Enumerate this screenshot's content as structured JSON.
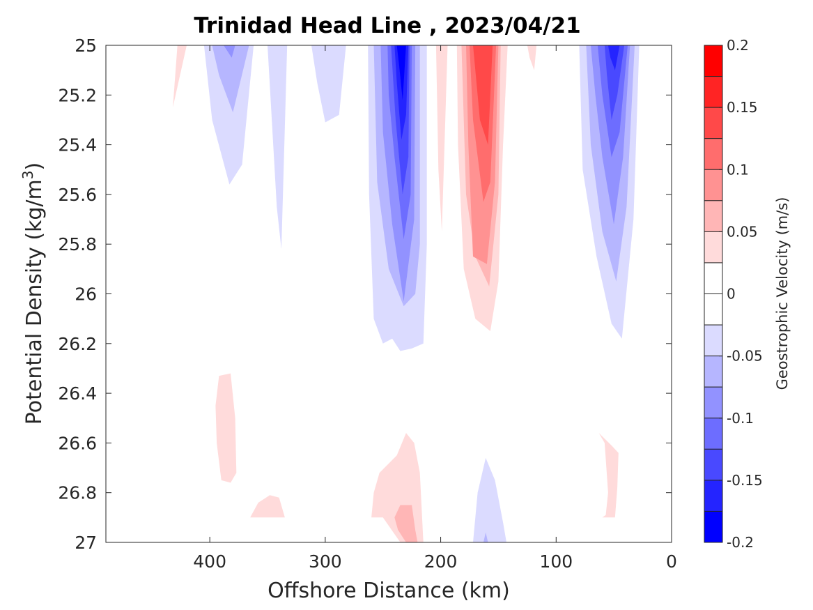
{
  "chart_data": {
    "type": "contour",
    "title": "Trinidad Head Line , 2023/04/21",
    "xlabel": "Offshore Distance (km)",
    "ylabel_main": "Potential Density (kg/m",
    "ylabel_sup": "3",
    "ylabel_end": ")",
    "xlim": [
      490,
      0
    ],
    "ylim": [
      25,
      27
    ],
    "x_ticks": [
      400,
      300,
      200,
      100,
      0
    ],
    "x_tick_labels": [
      "400",
      "300",
      "200",
      "100",
      "0"
    ],
    "y_ticks": [
      25,
      25.2,
      25.4,
      25.6,
      25.8,
      26,
      26.2,
      26.4,
      26.6,
      26.8,
      27
    ],
    "y_tick_labels": [
      "25",
      "25.2",
      "25.4",
      "25.6",
      "25.8",
      "26",
      "26.2",
      "26.4",
      "26.6",
      "26.8",
      "27"
    ],
    "y_reversed": true,
    "colorbar": {
      "label": "Geostrophic Velocity (m/s)",
      "range": [
        -0.2,
        0.2
      ],
      "tick_values": [
        0.2,
        0.15,
        0.1,
        0.05,
        0,
        -0.05,
        -0.1,
        -0.15,
        -0.2
      ],
      "tick_labels": [
        "0.2",
        "0.15",
        "0.1",
        "0.05",
        "0",
        "-0.05",
        "-0.1",
        "-0.15",
        "-0.2"
      ],
      "levels": [
        {
          "from": 0.175,
          "to": 0.2,
          "color": "#ff0000"
        },
        {
          "from": 0.15,
          "to": 0.175,
          "color": "#ff2424"
        },
        {
          "from": 0.125,
          "to": 0.15,
          "color": "#ff4949"
        },
        {
          "from": 0.1,
          "to": 0.125,
          "color": "#ff6d6d"
        },
        {
          "from": 0.075,
          "to": 0.1,
          "color": "#ff9292"
        },
        {
          "from": 0.05,
          "to": 0.075,
          "color": "#ffb6b6"
        },
        {
          "from": 0.025,
          "to": 0.05,
          "color": "#ffdbdb"
        },
        {
          "from": 0,
          "to": 0.025,
          "color": "#ffffff"
        },
        {
          "from": -0.025,
          "to": 0,
          "color": "#ffffff"
        },
        {
          "from": -0.05,
          "to": -0.025,
          "color": "#dbdbff"
        },
        {
          "from": -0.075,
          "to": -0.05,
          "color": "#b6b6ff"
        },
        {
          "from": -0.1,
          "to": -0.075,
          "color": "#9292ff"
        },
        {
          "from": -0.125,
          "to": -0.1,
          "color": "#6d6dff"
        },
        {
          "from": -0.15,
          "to": -0.125,
          "color": "#4949ff"
        },
        {
          "from": -0.175,
          "to": -0.15,
          "color": "#2424ff"
        },
        {
          "from": -0.2,
          "to": -0.175,
          "color": "#0000ff"
        }
      ]
    },
    "regions": [
      {
        "name": "pos-a",
        "level": 0.025,
        "points": [
          [
            428,
            25
          ],
          [
            420,
            25
          ],
          [
            432,
            25.25
          ]
        ]
      },
      {
        "name": "neg-a1",
        "level": -0.025,
        "points": [
          [
            405,
            25
          ],
          [
            362,
            25
          ],
          [
            372,
            25.48
          ],
          [
            383,
            25.56
          ],
          [
            398,
            25.3
          ]
        ]
      },
      {
        "name": "neg-a2",
        "level": -0.05,
        "points": [
          [
            398,
            25
          ],
          [
            366,
            25
          ],
          [
            380,
            25.27
          ],
          [
            392,
            25.12
          ]
        ]
      },
      {
        "name": "neg-a3",
        "level": -0.075,
        "points": [
          [
            388,
            25
          ],
          [
            378,
            25
          ],
          [
            381,
            25.05
          ]
        ]
      },
      {
        "name": "neg-b",
        "level": -0.025,
        "points": [
          [
            350,
            25
          ],
          [
            333,
            25
          ],
          [
            338,
            25.82
          ],
          [
            342,
            25.65
          ]
        ]
      },
      {
        "name": "neg-c",
        "level": -0.025,
        "points": [
          [
            312,
            25
          ],
          [
            282,
            25
          ],
          [
            288,
            25.28
          ],
          [
            300,
            25.31
          ],
          [
            307,
            25.15
          ]
        ]
      },
      {
        "name": "neg-d1",
        "level": -0.025,
        "points": [
          [
            263,
            25
          ],
          [
            212,
            25
          ],
          [
            212,
            25.8
          ],
          [
            215,
            26.2
          ],
          [
            225,
            26.22
          ],
          [
            235,
            26.23
          ],
          [
            242,
            26.18
          ],
          [
            250,
            26.2
          ],
          [
            258,
            26.1
          ],
          [
            262,
            25.6
          ]
        ]
      },
      {
        "name": "neg-d2",
        "level": -0.05,
        "points": [
          [
            258,
            25
          ],
          [
            218,
            25
          ],
          [
            218,
            25.8
          ],
          [
            222,
            26.0
          ],
          [
            232,
            26.05
          ],
          [
            245,
            25.9
          ],
          [
            255,
            25.55
          ]
        ]
      },
      {
        "name": "neg-d3",
        "level": -0.075,
        "points": [
          [
            252,
            25
          ],
          [
            222,
            25
          ],
          [
            223,
            25.7
          ],
          [
            232,
            26.03
          ],
          [
            242,
            25.72
          ],
          [
            250,
            25.35
          ]
        ]
      },
      {
        "name": "neg-d4",
        "level": -0.1,
        "points": [
          [
            246,
            25
          ],
          [
            225,
            25
          ],
          [
            226,
            25.6
          ],
          [
            232,
            25.78
          ],
          [
            240,
            25.45
          ],
          [
            245,
            25.2
          ]
        ]
      },
      {
        "name": "neg-d5",
        "level": -0.125,
        "points": [
          [
            243,
            25
          ],
          [
            227,
            25
          ],
          [
            228,
            25.45
          ],
          [
            233,
            25.6
          ],
          [
            239,
            25.3
          ]
        ]
      },
      {
        "name": "neg-d6",
        "level": -0.15,
        "points": [
          [
            240,
            25
          ],
          [
            228,
            25
          ],
          [
            230,
            25.28
          ],
          [
            234,
            25.38
          ],
          [
            238,
            25.15
          ]
        ]
      },
      {
        "name": "neg-d7",
        "level": -0.175,
        "points": [
          [
            238,
            25
          ],
          [
            230,
            25
          ],
          [
            233,
            25.22
          ],
          [
            236,
            25.08
          ]
        ]
      },
      {
        "name": "pos-e",
        "level": 0.025,
        "points": [
          [
            204,
            25
          ],
          [
            194,
            25
          ],
          [
            199,
            25.75
          ],
          [
            202,
            25.5
          ]
        ]
      },
      {
        "name": "pos-f1",
        "level": 0.025,
        "points": [
          [
            186,
            25
          ],
          [
            142,
            25
          ],
          [
            146,
            25.4
          ],
          [
            150,
            25.95
          ],
          [
            157,
            26.15
          ],
          [
            170,
            26.1
          ],
          [
            180,
            25.9
          ],
          [
            185,
            25.4
          ]
        ]
      },
      {
        "name": "pos-f2",
        "level": 0.05,
        "points": [
          [
            182,
            25
          ],
          [
            148,
            25
          ],
          [
            150,
            25.6
          ],
          [
            158,
            25.97
          ],
          [
            170,
            25.85
          ],
          [
            178,
            25.6
          ]
        ]
      },
      {
        "name": "pos-f3",
        "level": 0.075,
        "points": [
          [
            178,
            25
          ],
          [
            150,
            25
          ],
          [
            153,
            25.55
          ],
          [
            160,
            25.88
          ],
          [
            172,
            25.85
          ],
          [
            176,
            25.4
          ]
        ]
      },
      {
        "name": "pos-f4",
        "level": 0.1,
        "points": [
          [
            175,
            25
          ],
          [
            152,
            25
          ],
          [
            157,
            25.55
          ],
          [
            163,
            25.63
          ],
          [
            172,
            25.3
          ]
        ]
      },
      {
        "name": "pos-f5",
        "level": 0.125,
        "points": [
          [
            172,
            25
          ],
          [
            155,
            25
          ],
          [
            159,
            25.4
          ],
          [
            166,
            25.3
          ]
        ]
      },
      {
        "name": "pos-g",
        "level": 0.025,
        "points": [
          [
            125,
            25
          ],
          [
            117,
            25
          ],
          [
            119,
            25.1
          ],
          [
            123,
            25.05
          ]
        ]
      },
      {
        "name": "neg-h1",
        "level": -0.025,
        "points": [
          [
            80,
            25
          ],
          [
            28,
            25
          ],
          [
            33,
            25.7
          ],
          [
            43,
            26.18
          ],
          [
            52,
            26.12
          ],
          [
            65,
            25.85
          ],
          [
            77,
            25.5
          ]
        ]
      },
      {
        "name": "neg-h2",
        "level": -0.05,
        "points": [
          [
            74,
            25
          ],
          [
            32,
            25
          ],
          [
            39,
            25.65
          ],
          [
            48,
            25.95
          ],
          [
            60,
            25.75
          ],
          [
            70,
            25.4
          ]
        ]
      },
      {
        "name": "neg-h3",
        "level": -0.075,
        "points": [
          [
            70,
            25
          ],
          [
            36,
            25
          ],
          [
            42,
            25.45
          ],
          [
            50,
            25.72
          ],
          [
            60,
            25.45
          ],
          [
            66,
            25.2
          ]
        ]
      },
      {
        "name": "neg-h4",
        "level": -0.1,
        "points": [
          [
            64,
            25
          ],
          [
            38,
            25
          ],
          [
            45,
            25.35
          ],
          [
            52,
            25.45
          ],
          [
            60,
            25.2
          ]
        ]
      },
      {
        "name": "neg-h5",
        "level": -0.125,
        "points": [
          [
            58,
            25
          ],
          [
            41,
            25
          ],
          [
            47,
            25.2
          ],
          [
            52,
            25.3
          ],
          [
            56,
            25.12
          ]
        ]
      },
      {
        "name": "neg-h6",
        "level": -0.15,
        "points": [
          [
            55,
            25
          ],
          [
            45,
            25
          ],
          [
            49,
            25.1
          ],
          [
            53,
            25.05
          ]
        ]
      },
      {
        "name": "pos-i",
        "level": 0.025,
        "points": [
          [
            392,
            26.33
          ],
          [
            382,
            26.32
          ],
          [
            378,
            26.5
          ],
          [
            377,
            26.72
          ],
          [
            382,
            26.76
          ],
          [
            390,
            26.75
          ],
          [
            394,
            26.6
          ],
          [
            395,
            26.45
          ]
        ]
      },
      {
        "name": "pos-j",
        "level": 0.025,
        "points": [
          [
            365,
            26.9
          ],
          [
            335,
            26.9
          ],
          [
            340,
            26.82
          ],
          [
            348,
            26.81
          ],
          [
            358,
            26.84
          ]
        ]
      },
      {
        "name": "pos-k1",
        "level": 0.025,
        "points": [
          [
            260,
            26.9
          ],
          [
            258,
            26.8
          ],
          [
            253,
            26.72
          ],
          [
            238,
            26.65
          ],
          [
            230,
            26.56
          ],
          [
            223,
            26.6
          ],
          [
            218,
            26.72
          ],
          [
            215,
            27
          ],
          [
            235,
            27
          ],
          [
            250,
            26.9
          ]
        ]
      },
      {
        "name": "pos-k2",
        "level": 0.05,
        "points": [
          [
            240,
            26.9
          ],
          [
            235,
            26.85
          ],
          [
            225,
            26.85
          ],
          [
            222,
            26.95
          ],
          [
            220,
            27
          ],
          [
            230,
            27
          ],
          [
            237,
            26.95
          ]
        ]
      },
      {
        "name": "neg-l1",
        "level": -0.025,
        "points": [
          [
            172,
            27
          ],
          [
            168,
            26.8
          ],
          [
            161,
            26.66
          ],
          [
            153,
            26.75
          ],
          [
            146,
            26.92
          ],
          [
            143,
            27
          ]
        ]
      },
      {
        "name": "neg-l2",
        "level": -0.05,
        "points": [
          [
            163,
            27
          ],
          [
            161,
            26.96
          ],
          [
            159,
            27
          ]
        ]
      },
      {
        "name": "pos-m",
        "level": 0.025,
        "points": [
          [
            63,
            26.56
          ],
          [
            58,
            26.6
          ],
          [
            55,
            26.8
          ],
          [
            57,
            26.89
          ],
          [
            60,
            26.9
          ],
          [
            49,
            26.9
          ],
          [
            47,
            26.78
          ],
          [
            46,
            26.64
          ],
          [
            52,
            26.61
          ]
        ]
      }
    ]
  }
}
